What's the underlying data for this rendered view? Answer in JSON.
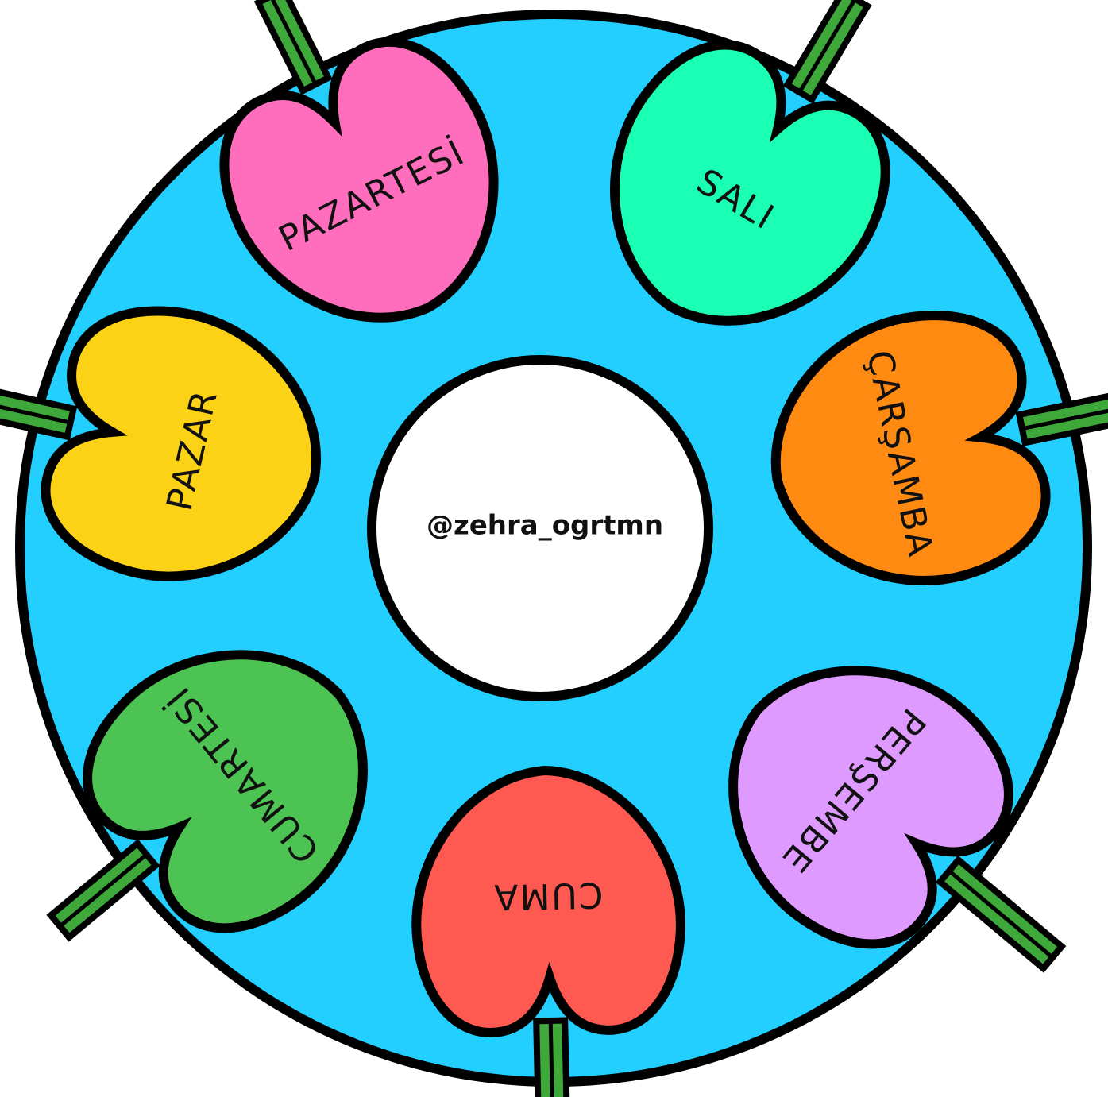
{
  "center": {
    "label": "@zehra_ogrtmn"
  },
  "petals": [
    {
      "label": "PAZARTESİ"
    },
    {
      "label": "SALI"
    },
    {
      "label": "ÇARŞAMBA"
    },
    {
      "label": "PERŞEMBE"
    },
    {
      "label": "CUMA"
    },
    {
      "label": "CUMARTESİ"
    },
    {
      "label": "PAZAR"
    }
  ]
}
